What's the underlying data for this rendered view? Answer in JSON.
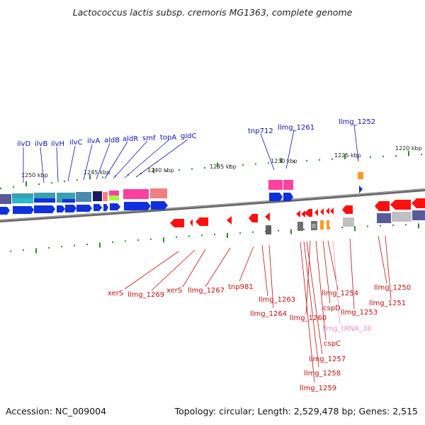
{
  "header": {
    "title": "Lactococcus lactis subsp. cremoris MG1363, complete genome"
  },
  "footer": {
    "accession": "Accession: NC_009004",
    "topology": "Topology: circular; Length: 2,529,478 bp; Genes: 2,515"
  },
  "colors": {
    "backbone": "#777777",
    "forward_label": "#1010b0",
    "reverse_label": "#c01010",
    "trna_label": "#e890c0",
    "tick": "#2a8a2a"
  },
  "kbp_labels": [
    "1250 kbp",
    "1245 kbp",
    "1240 kbp",
    "1235 kbp",
    "1230 kbp",
    "1225 kbp",
    "1220 kbp"
  ],
  "top_genes": [
    "ilvD",
    "ilvB",
    "ilvH",
    "ilvC",
    "ilvA",
    "aldB",
    "aldR",
    "smf",
    "topA",
    "gidC",
    "tnp712",
    "llmg_1261",
    "llmg_1252"
  ],
  "bottom_genes": [
    "xerS",
    "llmg_1269",
    "xerS",
    "llmg_1267",
    "tnp981",
    "llmg_1263",
    "llmg_1264",
    "llmg_1260",
    "llmg_1254",
    "cspD",
    "llmg_1253",
    "llmg_tRNA_38",
    "cspC",
    "llmg_1257",
    "llmg_1258",
    "llmg_1259",
    "llmg_1250",
    "llmg_1251"
  ]
}
